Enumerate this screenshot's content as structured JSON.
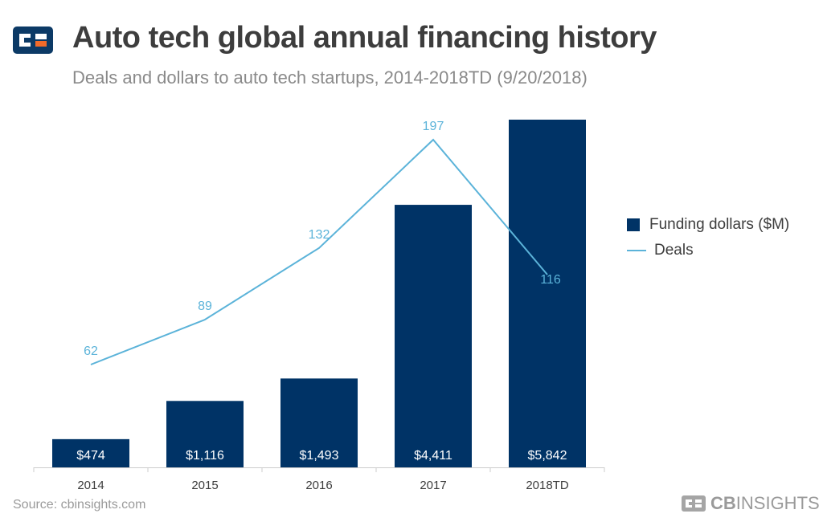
{
  "header": {
    "title": "Auto tech global annual financing history",
    "subtitle": "Deals and dollars to auto tech startups, 2014-2018TD (9/20/2018)"
  },
  "legend": {
    "funding_label": "Funding dollars ($M)",
    "deals_label": "Deals"
  },
  "footer": {
    "source": "Source: cbinsights.com",
    "brand_bold": "CB",
    "brand_light": "INSIGHTS"
  },
  "colors": {
    "bar": "#003366",
    "line": "#5bb3d9",
    "line_label": "#5bb3d9",
    "bar_label": "#ffffff",
    "axis": "#cccccc",
    "tick": "#3d3d3d",
    "logo_blue": "#0c3a66",
    "logo_orange": "#f26b2a"
  },
  "chart_data": {
    "type": "bar",
    "title": "Auto tech global annual financing history",
    "subtitle": "Deals and dollars to auto tech startups, 2014-2018TD (9/20/2018)",
    "categories": [
      "2014",
      "2015",
      "2016",
      "2017",
      "2018TD"
    ],
    "series": [
      {
        "name": "Funding dollars ($M)",
        "type": "bar",
        "values": [
          474,
          1116,
          1493,
          4411,
          5842
        ],
        "labels": [
          "$474",
          "$1,116",
          "$1,493",
          "$4,411",
          "$5,842"
        ]
      },
      {
        "name": "Deals",
        "type": "line",
        "values": [
          62,
          89,
          132,
          197,
          116
        ],
        "labels": [
          "62",
          "89",
          "132",
          "197",
          "116"
        ]
      }
    ],
    "bar_axis_range": [
      0,
      5842
    ],
    "line_axis_range": [
      27,
      197
    ],
    "grid": false,
    "legend_position": "right"
  }
}
